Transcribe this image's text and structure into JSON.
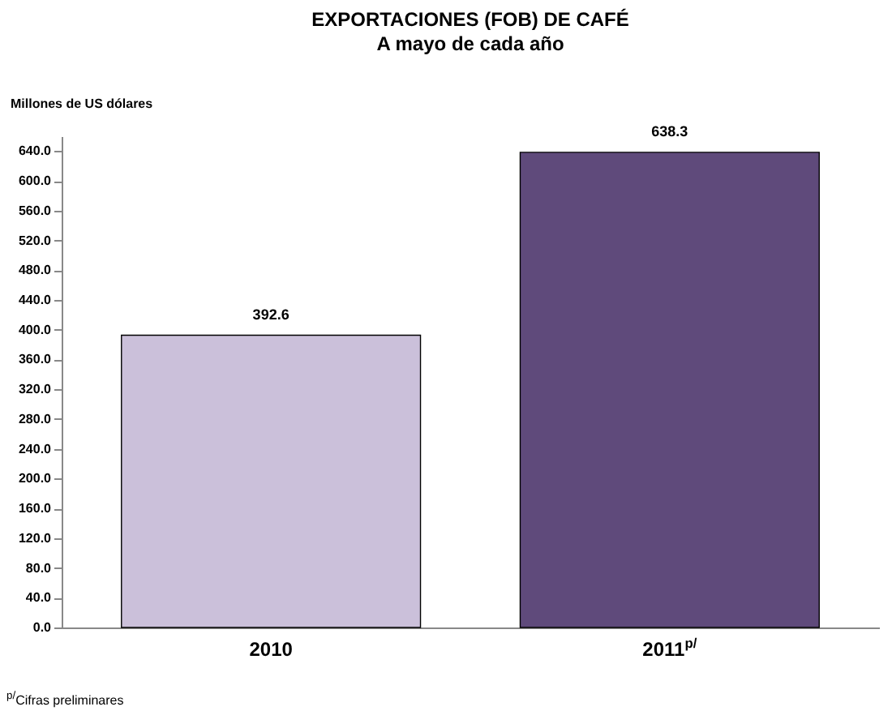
{
  "chart_data": {
    "type": "bar",
    "title": "EXPORTACIONES (FOB) DE CAFÉ",
    "subtitle": "A mayo de cada año",
    "ylabel": "Millones de US dólares",
    "categories": [
      "2010",
      "2011$^{p/}$"
    ],
    "values": [
      392.6,
      638.3
    ],
    "colors": [
      "#cbc0da",
      "#5f4a7b"
    ],
    "ylim": [
      0,
      660
    ],
    "yticks": [
      {
        "value": 0,
        "label": "0.0"
      },
      {
        "value": 40,
        "label": "40.0"
      },
      {
        "value": 80,
        "label": "80.0"
      },
      {
        "value": 120,
        "label": "120.0"
      },
      {
        "value": 160,
        "label": "160.0"
      },
      {
        "value": 200,
        "label": "200.0"
      },
      {
        "value": 240,
        "label": "240.0"
      },
      {
        "value": 280,
        "label": "280.0"
      },
      {
        "value": 320,
        "label": "320.0"
      },
      {
        "value": 360,
        "label": "360.0"
      },
      {
        "value": 400,
        "label": "400.0"
      },
      {
        "value": 440,
        "label": "440.0"
      },
      {
        "value": 480,
        "label": "480.0"
      },
      {
        "value": 520,
        "label": "520.0"
      },
      {
        "value": 560,
        "label": "560.0"
      },
      {
        "value": 600,
        "label": "600.0"
      },
      {
        "value": 640,
        "label": "640.0"
      }
    ],
    "data_labels": true,
    "grid": false,
    "annotations": [
      "$^{p/}$Cifras preliminares"
    ]
  }
}
